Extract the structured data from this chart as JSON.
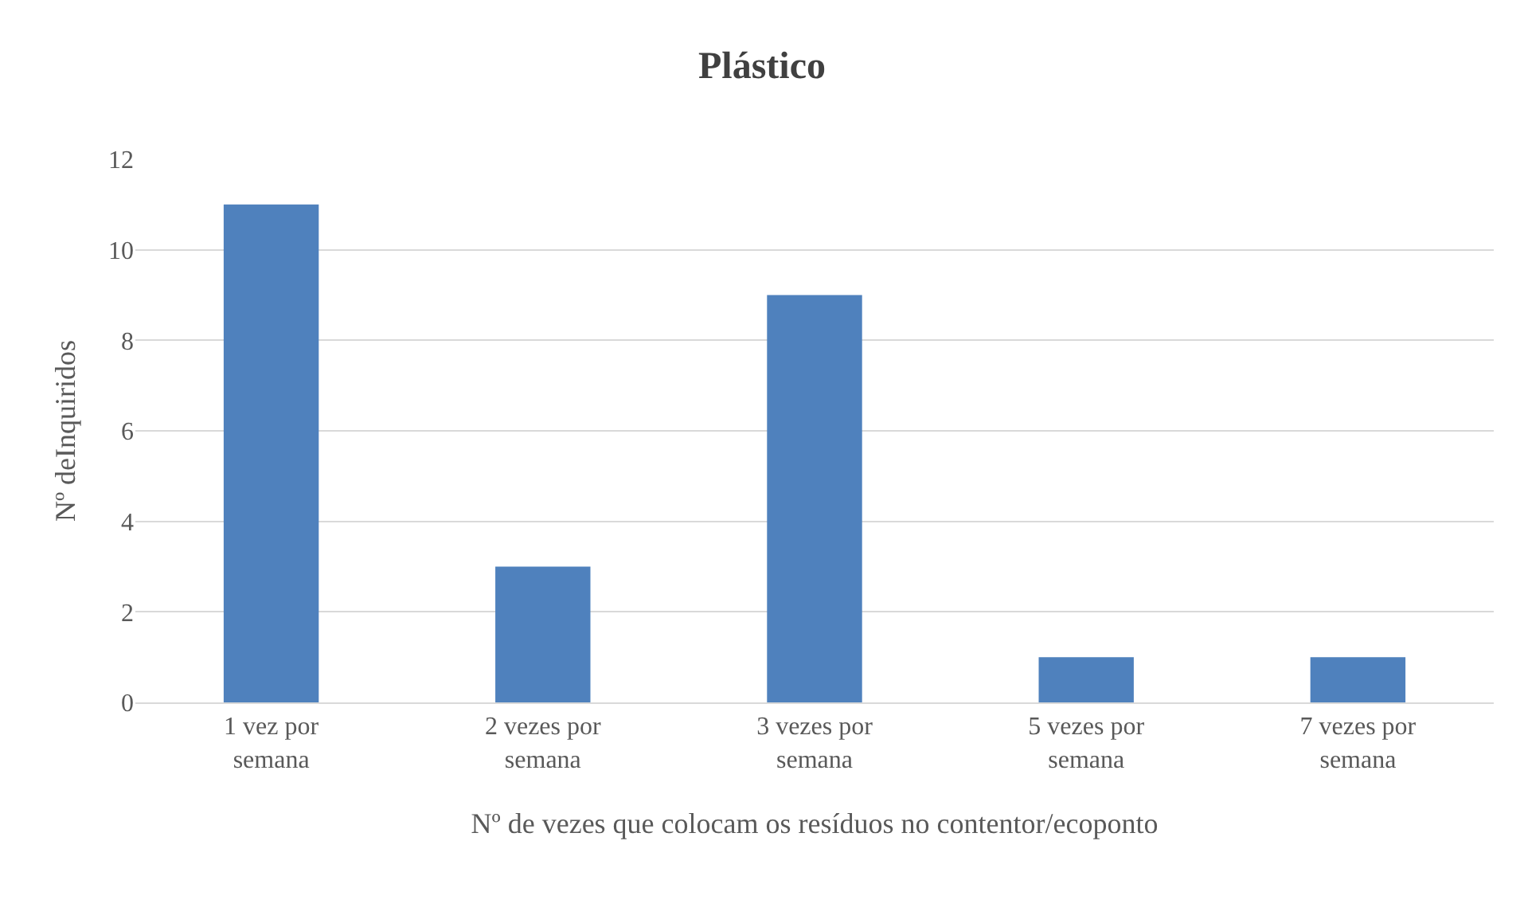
{
  "chart_data": {
    "type": "bar",
    "title": "Plástico",
    "xlabel": "Nº de vezes que colocam os resíduos no contentor/ecoponto",
    "ylabel": "Nº deInquiridos",
    "categories": [
      "1 vez por semana",
      "2 vezes por semana",
      "3 vezes por semana",
      "5 vezes por semana",
      "7 vezes por semana"
    ],
    "values": [
      11,
      3,
      9,
      1,
      1
    ],
    "color": "#4f81bd",
    "ylim": [
      0,
      12
    ],
    "yticks": [
      0,
      2,
      4,
      6,
      8,
      10,
      12
    ],
    "grid": "y"
  }
}
